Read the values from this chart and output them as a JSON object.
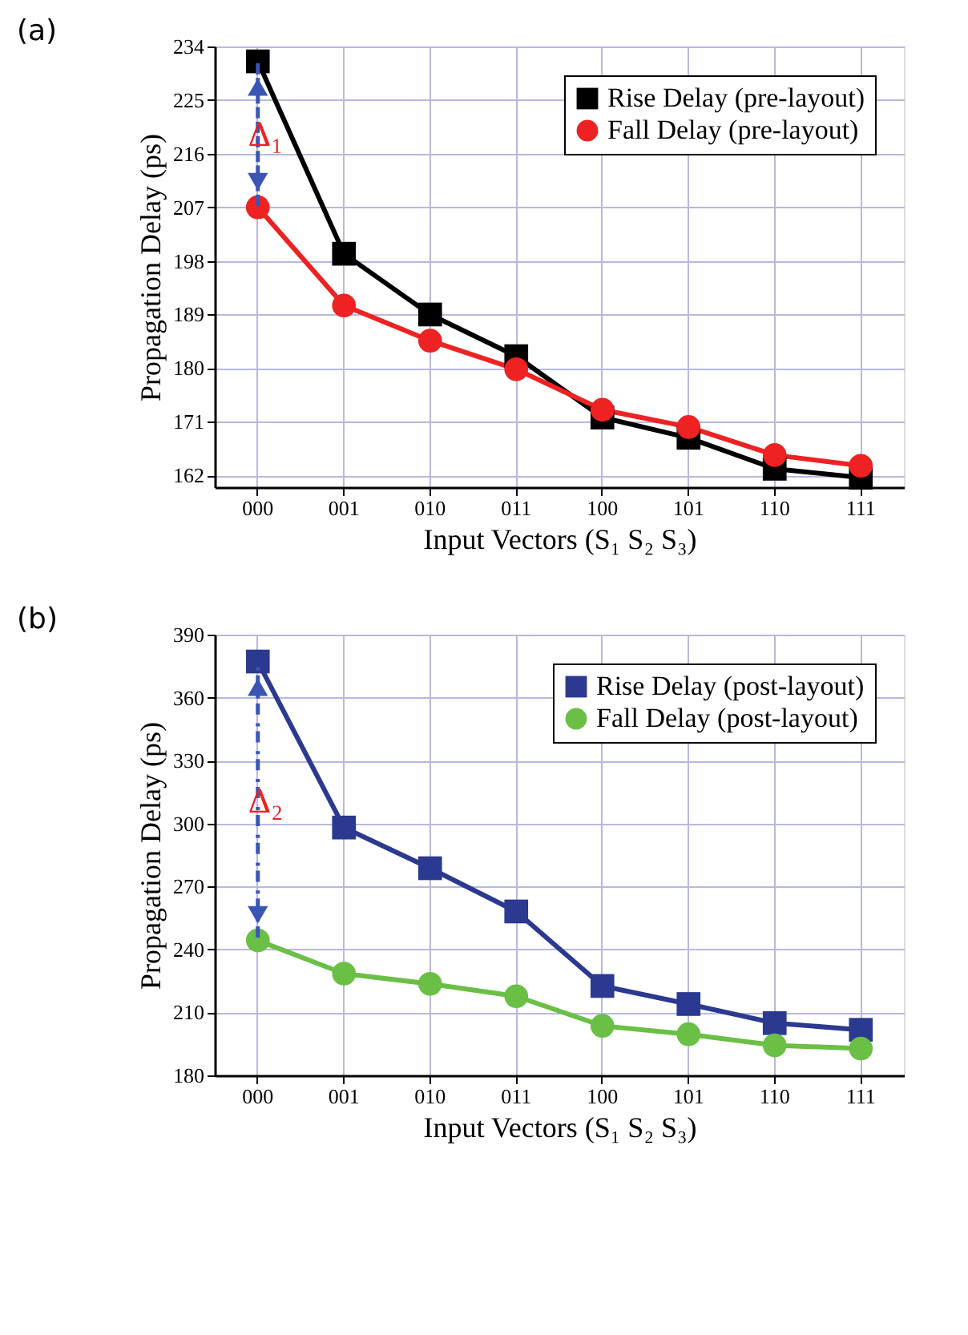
{
  "chart_data": [
    {
      "type": "line",
      "title": "(a)",
      "xlabel": "Input Vectors (S₁ S₂ S₃)",
      "ylabel": "Propagation Delay (ps)",
      "categories": [
        "000",
        "001",
        "010",
        "011",
        "100",
        "101",
        "110",
        "111"
      ],
      "ylim": [
        160,
        234
      ],
      "yticks": [
        162,
        171,
        180,
        189,
        198,
        207,
        216,
        225,
        234
      ],
      "grid": true,
      "legend": "top right",
      "line_style": "solid",
      "series": [
        {
          "name": "Rise Delay (pre-layout)",
          "color": "#000000",
          "marker": "square",
          "values": [
            231.5,
            199.2,
            189.0,
            182.0,
            171.7,
            168.3,
            163.1,
            161.6
          ]
        },
        {
          "name": "Fall Delay (pre-layout)",
          "color": "#ee2222",
          "marker": "circle",
          "values": [
            207.0,
            190.5,
            184.6,
            179.8,
            173.0,
            170.1,
            165.4,
            163.6
          ]
        }
      ],
      "annotations": [
        "Δ₁"
      ]
    },
    {
      "type": "line",
      "title": "(b)",
      "xlabel": "Input Vectors (S₁ S₂ S₃)",
      "ylabel": "Propagation Delay (ps)",
      "categories": [
        "000",
        "001",
        "010",
        "011",
        "100",
        "101",
        "110",
        "111"
      ],
      "ylim": [
        180,
        390
      ],
      "yticks": [
        180,
        210,
        240,
        270,
        300,
        330,
        360,
        390
      ],
      "grid": true,
      "legend": "top right",
      "line_style": "solid",
      "series": [
        {
          "name": "Rise Delay (post-layout)",
          "color": "#2b3990",
          "marker": "square",
          "values": [
            377.2,
            298.1,
            278.7,
            258.1,
            222.6,
            214.0,
            204.9,
            201.7
          ]
        },
        {
          "name": "Fall Delay (post-layout)",
          "color": "#6abf45",
          "marker": "circle",
          "values": [
            244.3,
            228.5,
            223.6,
            217.7,
            203.6,
            199.6,
            194.3,
            192.8
          ]
        }
      ],
      "annotations": [
        "Δ₂"
      ]
    }
  ]
}
